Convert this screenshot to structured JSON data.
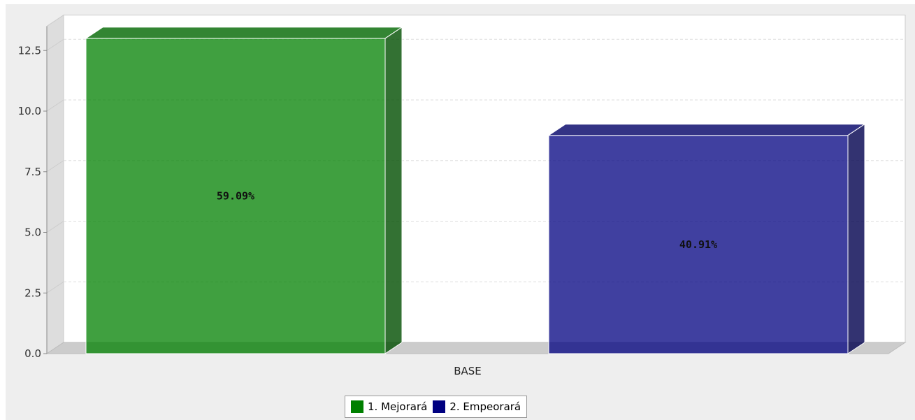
{
  "chart_data": {
    "type": "bar",
    "categories": [
      "BASE"
    ],
    "series": [
      {
        "name": "1. Mejorará",
        "values": [
          13
        ],
        "label": "59.09%",
        "color": "#008000"
      },
      {
        "name": "2. Empeorará",
        "values": [
          9
        ],
        "label": "40.91%",
        "color": "#000080"
      }
    ],
    "xlabel": "BASE",
    "ylim": [
      0,
      13.5
    ],
    "yticks": [
      "0.0",
      "2.5",
      "5.0",
      "7.5",
      "10.0",
      "12.5"
    ],
    "ytick_values": [
      0,
      2.5,
      5,
      7.5,
      10,
      12.5
    ],
    "grid": true,
    "legend_position": "bottom-center",
    "colors": {
      "background": "#eeeeee",
      "plot_background": "#ffffff",
      "wall": "#dddddd",
      "floor": "#cccccc",
      "grid": "#dddddd"
    }
  }
}
